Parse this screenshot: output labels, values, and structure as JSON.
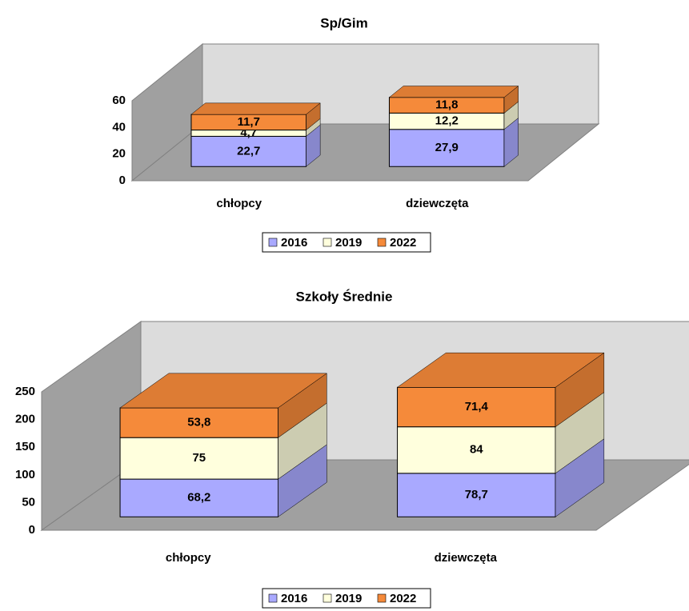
{
  "chart_data": [
    {
      "type": "bar",
      "stacked": true,
      "title": "Sp/Gim",
      "categories": [
        "chłopcy",
        "dziewczęta"
      ],
      "series": [
        {
          "name": "2016",
          "color": "#a9a9ff",
          "values": [
            22.7,
            27.9
          ],
          "value_labels": [
            "22,7",
            "27,9"
          ]
        },
        {
          "name": "2019",
          "color": "#ffffdd",
          "values": [
            4.7,
            12.2
          ],
          "value_labels": [
            "4,7",
            "12,2"
          ]
        },
        {
          "name": "2022",
          "color": "#f58a3a",
          "values": [
            11.7,
            11.8
          ],
          "value_labels": [
            "11,7",
            "11,8"
          ]
        }
      ],
      "ylim": [
        0,
        60
      ],
      "yticks": [
        0,
        20,
        40,
        60
      ]
    },
    {
      "type": "bar",
      "stacked": true,
      "title": "Szkoły Średnie",
      "categories": [
        "chłopcy",
        "dziewczęta"
      ],
      "series": [
        {
          "name": "2016",
          "color": "#a9a9ff",
          "values": [
            68.2,
            78.7
          ],
          "value_labels": [
            "68,2",
            "78,7"
          ]
        },
        {
          "name": "2019",
          "color": "#ffffdd",
          "values": [
            75,
            84
          ]
        },
        {
          "name": "2022",
          "color": "#f58a3a",
          "values": [
            53.8,
            71.4
          ],
          "value_labels": [
            "53,8",
            "71,4"
          ]
        }
      ],
      "ylim": [
        0,
        250
      ],
      "yticks": [
        0,
        50,
        100,
        150,
        200,
        250
      ]
    }
  ]
}
